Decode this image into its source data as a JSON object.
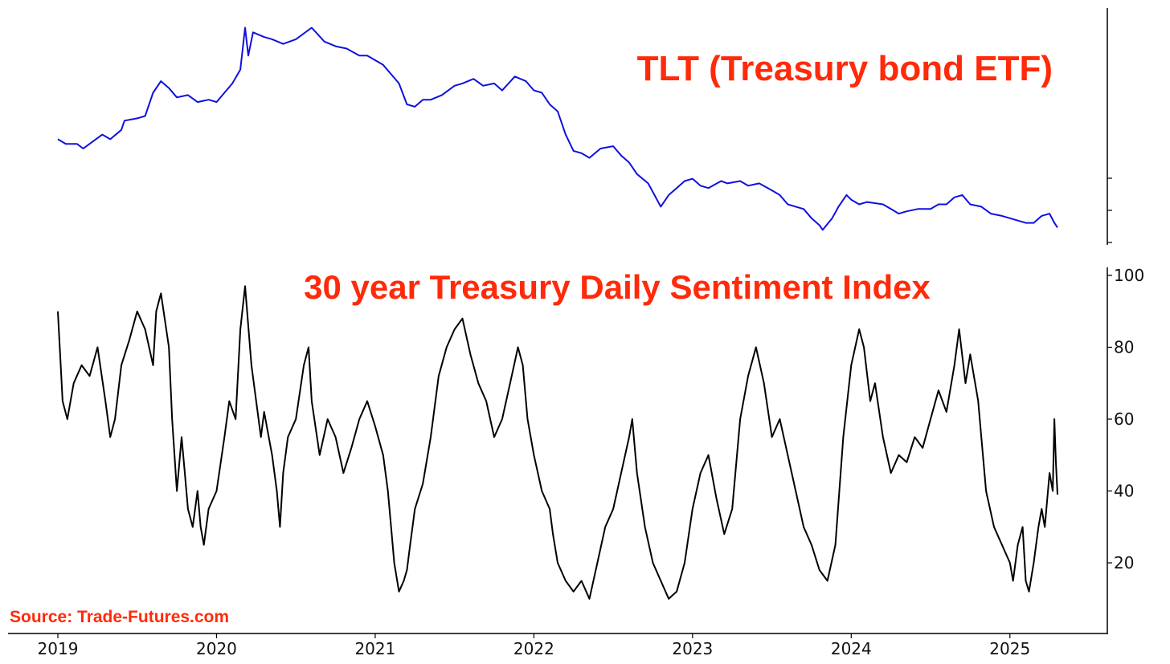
{
  "source": "Source: Trade-Futures.com",
  "colors": {
    "title": "#ff2a0a",
    "tlt_line": "#1010e0",
    "dsi_line": "#000000",
    "axis": "#000000"
  },
  "chart_data": [
    {
      "type": "line",
      "title": "TLT (Treasury bond ETF)",
      "xlim": [
        2019.0,
        2025.3
      ],
      "ylim": [
        80,
        175
      ],
      "y_ticks": [],
      "y_axis_side": "right",
      "series": [
        {
          "color": "#1010e0",
          "points": [
            [
              2019.0,
              122
            ],
            [
              2019.05,
              120
            ],
            [
              2019.12,
              120
            ],
            [
              2019.16,
              118
            ],
            [
              2019.22,
              121
            ],
            [
              2019.28,
              124
            ],
            [
              2019.33,
              122
            ],
            [
              2019.4,
              126
            ],
            [
              2019.42,
              130
            ],
            [
              2019.5,
              131
            ],
            [
              2019.55,
              132
            ],
            [
              2019.6,
              142
            ],
            [
              2019.65,
              147
            ],
            [
              2019.7,
              144
            ],
            [
              2019.75,
              140
            ],
            [
              2019.82,
              141
            ],
            [
              2019.88,
              138
            ],
            [
              2019.95,
              139
            ],
            [
              2020.0,
              138
            ],
            [
              2020.05,
              142
            ],
            [
              2020.1,
              146
            ],
            [
              2020.15,
              152
            ],
            [
              2020.18,
              170
            ],
            [
              2020.2,
              158
            ],
            [
              2020.23,
              168
            ],
            [
              2020.3,
              166
            ],
            [
              2020.35,
              165
            ],
            [
              2020.42,
              163
            ],
            [
              2020.5,
              165
            ],
            [
              2020.6,
              170
            ],
            [
              2020.68,
              164
            ],
            [
              2020.75,
              162
            ],
            [
              2020.82,
              161
            ],
            [
              2020.9,
              158
            ],
            [
              2020.95,
              158
            ],
            [
              2021.0,
              156
            ],
            [
              2021.05,
              154
            ],
            [
              2021.1,
              150
            ],
            [
              2021.15,
              146
            ],
            [
              2021.2,
              137
            ],
            [
              2021.25,
              136
            ],
            [
              2021.3,
              139
            ],
            [
              2021.35,
              139
            ],
            [
              2021.42,
              141
            ],
            [
              2021.5,
              145
            ],
            [
              2021.55,
              146
            ],
            [
              2021.62,
              148
            ],
            [
              2021.68,
              145
            ],
            [
              2021.75,
              146
            ],
            [
              2021.8,
              143
            ],
            [
              2021.88,
              149
            ],
            [
              2021.95,
              147
            ],
            [
              2022.0,
              143
            ],
            [
              2022.05,
              142
            ],
            [
              2022.1,
              137
            ],
            [
              2022.15,
              134
            ],
            [
              2022.2,
              124
            ],
            [
              2022.25,
              117
            ],
            [
              2022.3,
              116
            ],
            [
              2022.35,
              114
            ],
            [
              2022.42,
              118
            ],
            [
              2022.5,
              119
            ],
            [
              2022.55,
              115
            ],
            [
              2022.6,
              112
            ],
            [
              2022.65,
              107
            ],
            [
              2022.72,
              103
            ],
            [
              2022.8,
              93
            ],
            [
              2022.85,
              98
            ],
            [
              2022.9,
              101
            ],
            [
              2022.95,
              104
            ],
            [
              2023.0,
              105
            ],
            [
              2023.05,
              102
            ],
            [
              2023.1,
              101
            ],
            [
              2023.18,
              104
            ],
            [
              2023.22,
              103
            ],
            [
              2023.3,
              104
            ],
            [
              2023.35,
              102
            ],
            [
              2023.42,
              103
            ],
            [
              2023.5,
              100
            ],
            [
              2023.55,
              98
            ],
            [
              2023.6,
              94
            ],
            [
              2023.65,
              93
            ],
            [
              2023.7,
              92
            ],
            [
              2023.75,
              88
            ],
            [
              2023.8,
              85
            ],
            [
              2023.82,
              83
            ],
            [
              2023.88,
              88
            ],
            [
              2023.92,
              93
            ],
            [
              2023.97,
              98
            ],
            [
              2024.0,
              96
            ],
            [
              2024.05,
              94
            ],
            [
              2024.1,
              95
            ],
            [
              2024.2,
              94
            ],
            [
              2024.25,
              92
            ],
            [
              2024.3,
              90
            ],
            [
              2024.35,
              91
            ],
            [
              2024.42,
              92
            ],
            [
              2024.5,
              92
            ],
            [
              2024.55,
              94
            ],
            [
              2024.6,
              94
            ],
            [
              2024.65,
              97
            ],
            [
              2024.7,
              98
            ],
            [
              2024.75,
              94
            ],
            [
              2024.82,
              93
            ],
            [
              2024.88,
              90
            ],
            [
              2024.95,
              89
            ],
            [
              2025.0,
              88
            ],
            [
              2025.05,
              87
            ],
            [
              2025.1,
              86
            ],
            [
              2025.15,
              86
            ],
            [
              2025.2,
              89
            ],
            [
              2025.25,
              90
            ],
            [
              2025.28,
              86
            ],
            [
              2025.3,
              84
            ]
          ]
        }
      ]
    },
    {
      "type": "line",
      "title": "30 year Treasury Daily Sentiment Index",
      "xlim": [
        2019.0,
        2025.3
      ],
      "ylim": [
        0,
        102
      ],
      "y_ticks": [
        20,
        40,
        60,
        80,
        100
      ],
      "y_axis_side": "right",
      "x_ticks": [
        2019,
        2020,
        2021,
        2022,
        2023,
        2024,
        2025
      ],
      "series": [
        {
          "color": "#000000",
          "points": [
            [
              2019.0,
              90
            ],
            [
              2019.03,
              65
            ],
            [
              2019.06,
              60
            ],
            [
              2019.1,
              70
            ],
            [
              2019.15,
              75
            ],
            [
              2019.2,
              72
            ],
            [
              2019.25,
              80
            ],
            [
              2019.3,
              65
            ],
            [
              2019.33,
              55
            ],
            [
              2019.36,
              60
            ],
            [
              2019.4,
              75
            ],
            [
              2019.45,
              82
            ],
            [
              2019.5,
              90
            ],
            [
              2019.55,
              85
            ],
            [
              2019.6,
              75
            ],
            [
              2019.62,
              90
            ],
            [
              2019.65,
              95
            ],
            [
              2019.7,
              80
            ],
            [
              2019.72,
              60
            ],
            [
              2019.75,
              40
            ],
            [
              2019.78,
              55
            ],
            [
              2019.8,
              45
            ],
            [
              2019.82,
              35
            ],
            [
              2019.85,
              30
            ],
            [
              2019.88,
              40
            ],
            [
              2019.9,
              30
            ],
            [
              2019.92,
              25
            ],
            [
              2019.95,
              35
            ],
            [
              2020.0,
              40
            ],
            [
              2020.05,
              55
            ],
            [
              2020.08,
              65
            ],
            [
              2020.12,
              60
            ],
            [
              2020.15,
              85
            ],
            [
              2020.18,
              97
            ],
            [
              2020.22,
              75
            ],
            [
              2020.25,
              65
            ],
            [
              2020.28,
              55
            ],
            [
              2020.3,
              62
            ],
            [
              2020.35,
              50
            ],
            [
              2020.38,
              40
            ],
            [
              2020.4,
              30
            ],
            [
              2020.42,
              45
            ],
            [
              2020.45,
              55
            ],
            [
              2020.5,
              60
            ],
            [
              2020.55,
              75
            ],
            [
              2020.58,
              80
            ],
            [
              2020.6,
              65
            ],
            [
              2020.65,
              50
            ],
            [
              2020.7,
              60
            ],
            [
              2020.75,
              55
            ],
            [
              2020.8,
              45
            ],
            [
              2020.85,
              52
            ],
            [
              2020.9,
              60
            ],
            [
              2020.95,
              65
            ],
            [
              2021.0,
              58
            ],
            [
              2021.05,
              50
            ],
            [
              2021.08,
              40
            ],
            [
              2021.1,
              30
            ],
            [
              2021.12,
              20
            ],
            [
              2021.15,
              12
            ],
            [
              2021.18,
              15
            ],
            [
              2021.2,
              18
            ],
            [
              2021.22,
              25
            ],
            [
              2021.25,
              35
            ],
            [
              2021.3,
              42
            ],
            [
              2021.35,
              55
            ],
            [
              2021.4,
              72
            ],
            [
              2021.45,
              80
            ],
            [
              2021.5,
              85
            ],
            [
              2021.55,
              88
            ],
            [
              2021.6,
              78
            ],
            [
              2021.65,
              70
            ],
            [
              2021.7,
              65
            ],
            [
              2021.75,
              55
            ],
            [
              2021.8,
              60
            ],
            [
              2021.85,
              70
            ],
            [
              2021.9,
              80
            ],
            [
              2021.93,
              75
            ],
            [
              2021.96,
              60
            ],
            [
              2022.0,
              50
            ],
            [
              2022.05,
              40
            ],
            [
              2022.1,
              35
            ],
            [
              2022.12,
              28
            ],
            [
              2022.15,
              20
            ],
            [
              2022.2,
              15
            ],
            [
              2022.25,
              12
            ],
            [
              2022.3,
              15
            ],
            [
              2022.35,
              10
            ],
            [
              2022.4,
              20
            ],
            [
              2022.45,
              30
            ],
            [
              2022.5,
              35
            ],
            [
              2022.55,
              45
            ],
            [
              2022.6,
              55
            ],
            [
              2022.62,
              60
            ],
            [
              2022.65,
              45
            ],
            [
              2022.7,
              30
            ],
            [
              2022.75,
              20
            ],
            [
              2022.8,
              15
            ],
            [
              2022.85,
              10
            ],
            [
              2022.9,
              12
            ],
            [
              2022.95,
              20
            ],
            [
              2023.0,
              35
            ],
            [
              2023.05,
              45
            ],
            [
              2023.1,
              50
            ],
            [
              2023.15,
              38
            ],
            [
              2023.2,
              28
            ],
            [
              2023.25,
              35
            ],
            [
              2023.3,
              60
            ],
            [
              2023.35,
              72
            ],
            [
              2023.4,
              80
            ],
            [
              2023.45,
              70
            ],
            [
              2023.5,
              55
            ],
            [
              2023.55,
              60
            ],
            [
              2023.6,
              50
            ],
            [
              2023.65,
              40
            ],
            [
              2023.7,
              30
            ],
            [
              2023.75,
              25
            ],
            [
              2023.8,
              18
            ],
            [
              2023.85,
              15
            ],
            [
              2023.9,
              25
            ],
            [
              2023.95,
              55
            ],
            [
              2024.0,
              75
            ],
            [
              2024.05,
              85
            ],
            [
              2024.08,
              80
            ],
            [
              2024.12,
              65
            ],
            [
              2024.15,
              70
            ],
            [
              2024.2,
              55
            ],
            [
              2024.25,
              45
            ],
            [
              2024.3,
              50
            ],
            [
              2024.35,
              48
            ],
            [
              2024.4,
              55
            ],
            [
              2024.45,
              52
            ],
            [
              2024.5,
              60
            ],
            [
              2024.55,
              68
            ],
            [
              2024.6,
              62
            ],
            [
              2024.65,
              75
            ],
            [
              2024.68,
              85
            ],
            [
              2024.72,
              70
            ],
            [
              2024.75,
              78
            ],
            [
              2024.8,
              65
            ],
            [
              2024.82,
              55
            ],
            [
              2024.85,
              40
            ],
            [
              2024.9,
              30
            ],
            [
              2024.95,
              25
            ],
            [
              2025.0,
              20
            ],
            [
              2025.02,
              15
            ],
            [
              2025.05,
              25
            ],
            [
              2025.08,
              30
            ],
            [
              2025.1,
              15
            ],
            [
              2025.12,
              12
            ],
            [
              2025.15,
              20
            ],
            [
              2025.18,
              30
            ],
            [
              2025.2,
              35
            ],
            [
              2025.22,
              30
            ],
            [
              2025.25,
              45
            ],
            [
              2025.27,
              40
            ],
            [
              2025.28,
              60
            ],
            [
              2025.29,
              48
            ],
            [
              2025.3,
              39
            ]
          ]
        }
      ]
    }
  ]
}
